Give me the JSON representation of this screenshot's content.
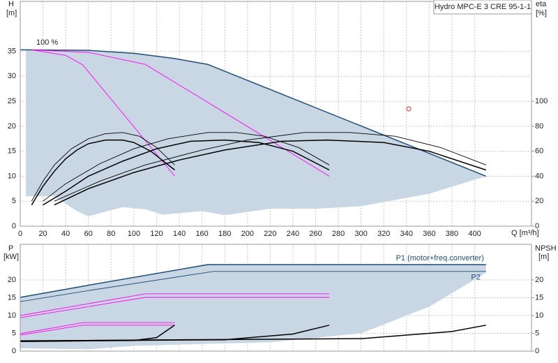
{
  "chart_data": [
    {
      "type": "line",
      "title": "Hydro MPC-E 3 CRE 95-1-1",
      "x_label": "Q [m³/h]",
      "y_label": "H",
      "y_unit": "[m]",
      "y2_label": "eta",
      "y2_unit": "[%]",
      "annotations": [
        "100 %"
      ],
      "xlim": [
        0,
        450
      ],
      "xticks": [
        0,
        20,
        40,
        60,
        80,
        100,
        120,
        140,
        160,
        180,
        200,
        220,
        240,
        260,
        280,
        300,
        320,
        340,
        360,
        380,
        400
      ],
      "ylim": [
        0,
        45
      ],
      "yticks": [
        0,
        5,
        10,
        15,
        20,
        25,
        30,
        35
      ],
      "y2lim": [
        0,
        180
      ],
      "y2ticks": [
        0,
        20,
        40,
        60,
        80,
        100
      ],
      "grid": true,
      "series": [
        {
          "kind": "area",
          "color": "#c9d6e3",
          "x": [
            5,
            60,
            100,
            135,
            165,
            410,
            360,
            300,
            260,
            220,
            180,
            160,
            125,
            110,
            90,
            60,
            50,
            30,
            5
          ],
          "values": [
            35.3,
            35.2,
            34.6,
            33.6,
            32.4,
            10,
            6.5,
            4,
            3.5,
            3.5,
            2.2,
            3,
            2.3,
            3.4,
            3.8,
            2,
            3,
            6,
            6
          ]
        },
        {
          "kind": "line",
          "style": "thick",
          "color": "#1f4e79",
          "x": [
            0,
            60,
            100,
            135,
            165,
            410
          ],
          "values": [
            35.3,
            35.2,
            34.6,
            33.6,
            32.4,
            10
          ]
        },
        {
          "kind": "line",
          "style": "thin",
          "color": "#ff00ff",
          "x": [
            10,
            40,
            55,
            136
          ],
          "values": [
            35.3,
            34.2,
            32.3,
            10
          ]
        },
        {
          "kind": "line",
          "style": "thin",
          "color": "#ff00ff",
          "x": [
            10,
            60,
            110,
            272
          ],
          "values": [
            35.3,
            34.8,
            32.4,
            10
          ]
        },
        {
          "kind": "line",
          "style": "thick",
          "color": "#000000",
          "axis": "y2",
          "x": [
            10,
            20,
            30,
            40,
            50,
            60,
            75,
            90,
            100,
            115,
            136
          ],
          "values": [
            17,
            32,
            44,
            54,
            61,
            66,
            69,
            69,
            67,
            60,
            45
          ]
        },
        {
          "kind": "line",
          "style": "thin",
          "color": "#000000",
          "axis": "y2",
          "x": [
            10,
            20,
            30,
            45,
            60,
            75,
            90,
            105,
            120,
            136
          ],
          "values": [
            20,
            36,
            49,
            62,
            70,
            74,
            75,
            72,
            63,
            49
          ]
        },
        {
          "kind": "line",
          "style": "thick",
          "color": "#000000",
          "axis": "y2",
          "x": [
            20,
            40,
            60,
            90,
            120,
            150,
            180,
            210,
            240,
            272
          ],
          "values": [
            17,
            28,
            40,
            52,
            62,
            68,
            69,
            67,
            60,
            45
          ]
        },
        {
          "kind": "line",
          "style": "thin",
          "color": "#000000",
          "axis": "y2",
          "x": [
            20,
            40,
            70,
            100,
            130,
            165,
            190,
            215,
            245,
            272
          ],
          "values": [
            20,
            34,
            50,
            62,
            70,
            75,
            75,
            72,
            63,
            49
          ]
        },
        {
          "kind": "line",
          "style": "thick",
          "color": "#000000",
          "axis": "y2",
          "x": [
            30,
            60,
            100,
            140,
            180,
            230,
            270,
            320,
            360,
            410
          ],
          "values": [
            17,
            30,
            43,
            53,
            61,
            68,
            69,
            67,
            60,
            45
          ]
        },
        {
          "kind": "line",
          "style": "thin",
          "color": "#000000",
          "axis": "y2",
          "x": [
            30,
            70,
            110,
            160,
            200,
            250,
            290,
            330,
            370,
            410
          ],
          "values": [
            20,
            36,
            49,
            61,
            69,
            75,
            75,
            72,
            63,
            49
          ]
        },
        {
          "kind": "marker",
          "color": "#e03030",
          "x": [
            342
          ],
          "values": [
            23.5
          ]
        }
      ]
    },
    {
      "type": "line",
      "y_label": "P",
      "y_unit": "[kW]",
      "y2_label": "NPSH",
      "y2_unit": "[m]",
      "xlim": [
        0,
        450
      ],
      "xticks": [
        0,
        20,
        40,
        60,
        80,
        100,
        120,
        140,
        160,
        180,
        200,
        220,
        240,
        260,
        280,
        300,
        320,
        340,
        360,
        380,
        400
      ],
      "ylim": [
        0,
        30
      ],
      "yticks": [
        0,
        5,
        10,
        15,
        20
      ],
      "y2lim": [
        0,
        30
      ],
      "y2ticks": [
        0,
        5,
        10,
        15,
        20
      ],
      "grid": true,
      "series": [
        {
          "kind": "area",
          "color": "#c9d6e3",
          "x": [
            0,
            60,
            165,
            410,
            410,
            360,
            300,
            220,
            160,
            100,
            60,
            0
          ],
          "values": [
            15.3,
            18.5,
            24.5,
            24.5,
            22,
            12.5,
            5,
            2.5,
            2,
            1.5,
            0.5,
            0.8
          ]
        },
        {
          "name": "P1 (motor+freq.converter)",
          "kind": "line",
          "style": "thick",
          "color": "#1f4e79",
          "x": [
            0,
            60,
            165,
            410
          ],
          "values": [
            15.1,
            18.5,
            24.3,
            24.3
          ]
        },
        {
          "name": "P2",
          "kind": "line",
          "style": "thin",
          "color": "#1f4e79",
          "x": [
            0,
            60,
            170,
            410
          ],
          "values": [
            13.9,
            17,
            22.4,
            22.4
          ]
        },
        {
          "kind": "line",
          "style": "thin",
          "color": "#ff00ff",
          "x": [
            0,
            110,
            272
          ],
          "values": [
            10,
            16.1,
            16.1
          ]
        },
        {
          "kind": "line",
          "style": "thin",
          "color": "#ff00ff",
          "x": [
            0,
            110,
            272
          ],
          "values": [
            9.4,
            15.1,
            15.1
          ]
        },
        {
          "kind": "line",
          "style": "thin",
          "color": "#ff00ff",
          "x": [
            0,
            55,
            136
          ],
          "values": [
            4.9,
            8,
            8
          ]
        },
        {
          "kind": "line",
          "style": "thin",
          "color": "#ff00ff",
          "x": [
            0,
            55,
            136
          ],
          "values": [
            4.5,
            7.3,
            7.3
          ]
        },
        {
          "kind": "line",
          "style": "thick",
          "color": "#000000",
          "axis": "y2",
          "x": [
            0,
            100,
            120,
            136
          ],
          "values": [
            2.7,
            3,
            3.8,
            7.3
          ]
        },
        {
          "kind": "line",
          "style": "thick",
          "color": "#000000",
          "axis": "y2",
          "x": [
            0,
            180,
            240,
            272
          ],
          "values": [
            2.8,
            3.2,
            4.8,
            7.3
          ]
        },
        {
          "kind": "line",
          "style": "thick",
          "color": "#000000",
          "axis": "y2",
          "x": [
            0,
            300,
            380,
            410
          ],
          "values": [
            2.9,
            3.5,
            5.5,
            7.3
          ]
        }
      ]
    }
  ]
}
